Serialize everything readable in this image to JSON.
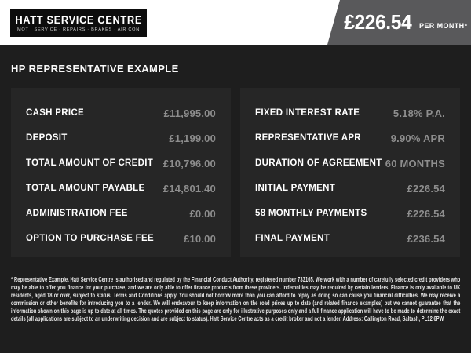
{
  "brand": {
    "name": "HATT SERVICE CENTRE",
    "services": "MOT · SERVICE · REPAIRS · BRAKES · AIR CON"
  },
  "price_banner": {
    "amount": "£226.54",
    "period": "PER MONTH*"
  },
  "section_title": "HP REPRESENTATIVE EXAMPLE",
  "finance": {
    "left": [
      {
        "label": "CASH PRICE",
        "value": "£11,995.00"
      },
      {
        "label": "DEPOSIT",
        "value": "£1,199.00"
      },
      {
        "label": "TOTAL AMOUNT OF CREDIT",
        "value": "£10,796.00"
      },
      {
        "label": "TOTAL AMOUNT PAYABLE",
        "value": "£14,801.40"
      },
      {
        "label": "ADMINISTRATION FEE",
        "value": "£0.00"
      },
      {
        "label": "OPTION TO PURCHASE FEE",
        "value": "£10.00"
      }
    ],
    "right": [
      {
        "label": "FIXED INTEREST RATE",
        "value": "5.18% P.A."
      },
      {
        "label": "REPRESENTATIVE APR",
        "value": "9.90% APR"
      },
      {
        "label": "DURATION OF AGREEMENT",
        "value": "60 MONTHS"
      },
      {
        "label": "INITIAL PAYMENT",
        "value": "£226.54"
      },
      {
        "label": "58 MONTHLY PAYMENTS",
        "value": "£226.54"
      },
      {
        "label": "FINAL PAYMENT",
        "value": "£236.54"
      }
    ]
  },
  "disclaimer": "* Representative Example. Hatt Service Centre is authorised and regulated by the Financial Conduct Authority, registered number 733165. We work with a number of carefully selected credit providers who may be able to offer you finance for your purchase, and we are only able to offer finance products from these providers. Indemnities may be required by certain lenders. Finance is only available to UK residents, aged 18 or over, subject to status. Terms and Conditions apply. You should not borrow more than you can afford to repay as doing so can cause you financial difficulties. We may receive a commission or other benefits for introducing you to a lender. We will endeavour to keep information on the road prices up to date (and related finance examples) but we cannot guarantee that the information shown on this page is up to date at all times. The quotes provided on this page are only for illustrative purposes only and a full finance application will have to be made to determine the exact details (all applications are subject to an underwriting decision and are subject to status). Hatt Service Centre acts as a credit broker and not a lender. Address: Callington Road, Saltash, PL12 6PW",
  "colors": {
    "banner_gray": "#59595b",
    "body_background": "#1e1e1e",
    "panel_background": "#262626",
    "value_text": "#8d8d8d",
    "logo_background": "#0d0d0d"
  }
}
